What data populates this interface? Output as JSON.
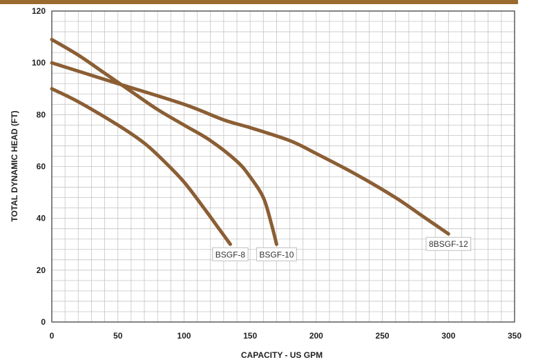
{
  "chart_data": {
    "type": "line",
    "title": "",
    "xlabel": "CAPACITY - US GPM",
    "ylabel": "TOTAL DYNAMIC HEAD (FT)",
    "xlim": [
      0,
      350
    ],
    "ylim": [
      0,
      120
    ],
    "x_ticks": [
      0,
      50,
      100,
      150,
      200,
      250,
      300,
      350
    ],
    "y_ticks": [
      0,
      20,
      40,
      60,
      80,
      100,
      120
    ],
    "grid": true,
    "minor_x_step": 10,
    "minor_y_step": 4,
    "header_bar_color": "#9a6a2e",
    "series_color": "#8b5e34",
    "series": [
      {
        "name": "BSGF-8",
        "points": [
          [
            0,
            90
          ],
          [
            20,
            85
          ],
          [
            50,
            76
          ],
          [
            70,
            69
          ],
          [
            85,
            62
          ],
          [
            100,
            54
          ],
          [
            115,
            44
          ],
          [
            125,
            37
          ],
          [
            135,
            30
          ]
        ]
      },
      {
        "name": "BSGF-10",
        "points": [
          [
            0,
            109
          ],
          [
            20,
            103
          ],
          [
            40,
            96
          ],
          [
            60,
            89
          ],
          [
            80,
            82
          ],
          [
            100,
            76
          ],
          [
            120,
            70
          ],
          [
            140,
            62
          ],
          [
            150,
            56
          ],
          [
            160,
            48
          ],
          [
            166,
            38
          ],
          [
            170,
            30
          ]
        ]
      },
      {
        "name": "8BSGF-12",
        "points": [
          [
            0,
            100
          ],
          [
            50,
            92
          ],
          [
            100,
            84
          ],
          [
            130,
            78
          ],
          [
            150,
            75
          ],
          [
            180,
            70
          ],
          [
            200,
            65
          ],
          [
            230,
            57
          ],
          [
            260,
            48
          ],
          [
            280,
            41
          ],
          [
            300,
            34
          ]
        ]
      }
    ]
  }
}
